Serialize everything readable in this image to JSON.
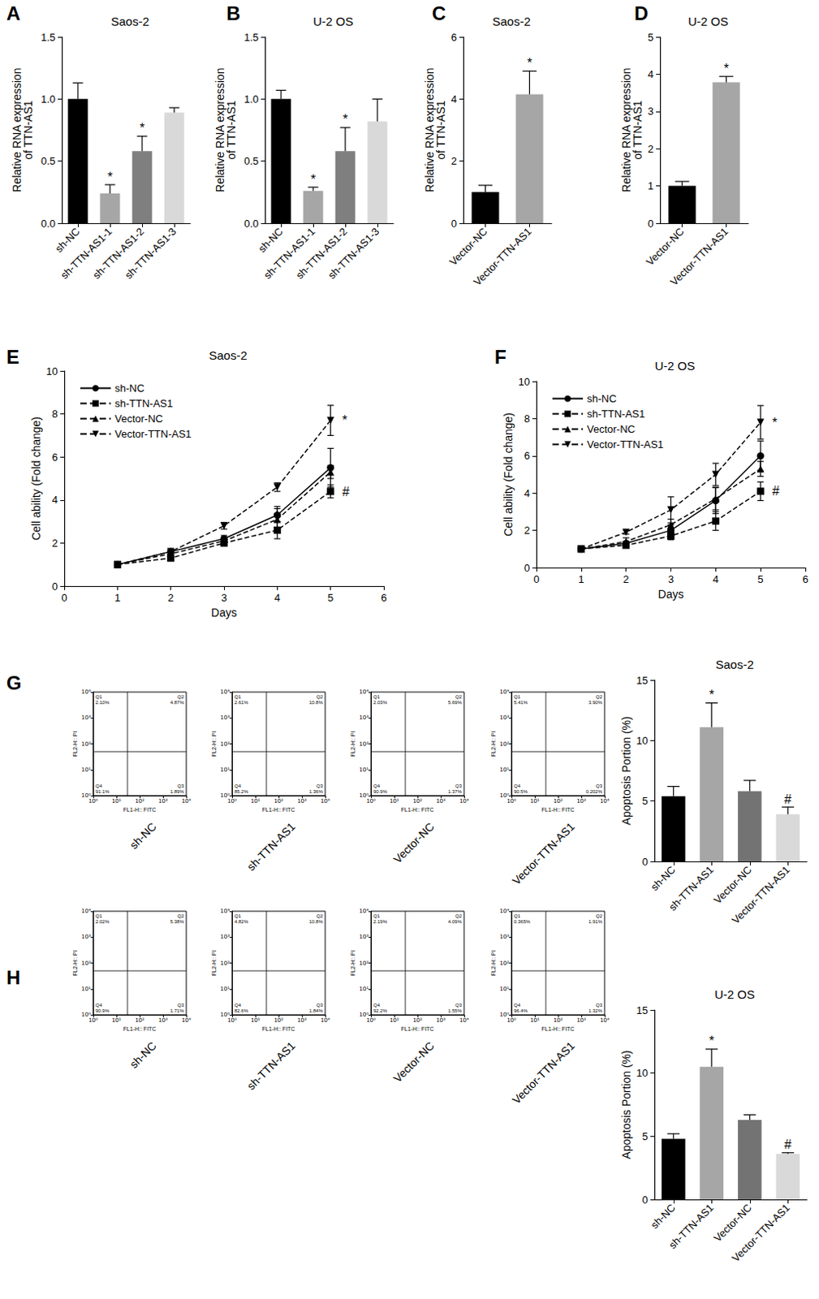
{
  "chart_data": [
    {
      "panel": "A",
      "type": "bar",
      "title": "Saos-2",
      "ylabel": "Relative RNA expression\nof TTN-AS1",
      "categories": [
        "sh-NC",
        "sh-TTN-AS1-1",
        "sh-TTN-AS1-2",
        "sh-TTN-AS1-3"
      ],
      "values": [
        1.0,
        0.24,
        0.58,
        0.89
      ],
      "errors": [
        0.13,
        0.07,
        0.12,
        0.04
      ],
      "annotations": [
        null,
        "*",
        "*",
        null
      ],
      "colors": [
        "#000000",
        "#a6a6a6",
        "#7f7f7f",
        "#d9d9d9"
      ],
      "ylim": [
        0,
        1.5
      ],
      "yticks": [
        {
          "value": 0,
          "label": "0.0"
        },
        0.5,
        {
          "value": 1,
          "label": "1.0"
        },
        1.5
      ],
      "grid": false
    },
    {
      "panel": "B",
      "type": "bar",
      "title": "U-2 OS",
      "ylabel": "Relative RNA expression\nof TTN-AS1",
      "categories": [
        "sh-NC",
        "sh-TTN-AS1-1",
        "sh-TTN-AS1-2",
        "sh-TTN-AS1-3"
      ],
      "values": [
        1.0,
        0.26,
        0.58,
        0.82
      ],
      "errors": [
        0.07,
        0.03,
        0.19,
        0.18
      ],
      "annotations": [
        null,
        "*",
        "*",
        null
      ],
      "colors": [
        "#000000",
        "#a6a6a6",
        "#7f7f7f",
        "#d9d9d9"
      ],
      "ylim": [
        0,
        1.5
      ],
      "yticks": [
        {
          "value": 0,
          "label": "0.0"
        },
        0.5,
        {
          "value": 1,
          "label": "1.0"
        },
        1.5
      ],
      "grid": false
    },
    {
      "panel": "C",
      "type": "bar",
      "title": "Saos-2",
      "ylabel": "Relative RNA expression\nof TTN-AS1",
      "categories": [
        "Vector-NC",
        "Vector-TTN-AS1"
      ],
      "values": [
        1.0,
        4.15
      ],
      "errors": [
        0.22,
        0.75
      ],
      "annotations": [
        null,
        "*"
      ],
      "colors": [
        "#000000",
        "#a6a6a6"
      ],
      "ylim": [
        0,
        6
      ],
      "yticks": [
        0,
        2,
        4,
        6
      ],
      "grid": false
    },
    {
      "panel": "D",
      "type": "bar",
      "title": "U-2 OS",
      "ylabel": "Relative RNA expression\nof TTN-AS1",
      "categories": [
        "Vector-NC",
        "Vector-TTN-AS1"
      ],
      "values": [
        1.0,
        3.78
      ],
      "errors": [
        0.12,
        0.16
      ],
      "annotations": [
        null,
        "*"
      ],
      "colors": [
        "#000000",
        "#a6a6a6"
      ],
      "ylim": [
        0,
        5
      ],
      "yticks": [
        0,
        1,
        2,
        3,
        4,
        5
      ],
      "grid": false
    },
    {
      "panel": "E",
      "type": "line",
      "title": "Saos-2",
      "xlabel": "Days",
      "ylabel": "Cell ability (Fold change)",
      "x": [
        1,
        2,
        3,
        4,
        5
      ],
      "xlim": [
        0,
        6
      ],
      "xticks": [
        0,
        1,
        2,
        3,
        4,
        5,
        6
      ],
      "ylim": [
        0,
        10
      ],
      "yticks": [
        0,
        2,
        4,
        6,
        8,
        10
      ],
      "grid": false,
      "legend": "upper left",
      "series": [
        {
          "name": "sh-NC",
          "color": "#000000",
          "marker": "circle",
          "line_style": "solid",
          "values": [
            1.0,
            1.6,
            2.2,
            3.3,
            5.5
          ],
          "errors": [
            0.05,
            0.1,
            0.15,
            0.3,
            0.9
          ]
        },
        {
          "name": "sh-TTN-AS1",
          "color": "#000000",
          "marker": "square",
          "line_style": "dashed",
          "values": [
            1.0,
            1.3,
            2.0,
            2.6,
            4.4
          ],
          "errors": [
            0.05,
            0.1,
            0.15,
            0.4,
            0.3
          ],
          "annotation": "#"
        },
        {
          "name": "Vector-NC",
          "color": "#000000",
          "marker": "triangle",
          "line_style": "dashed",
          "values": [
            1.0,
            1.5,
            2.1,
            3.1,
            5.3
          ],
          "errors": [
            0.05,
            0.1,
            0.15,
            0.6,
            0.3
          ]
        },
        {
          "name": "Vector-TTN-AS1",
          "color": "#000000",
          "marker": "triangle-down",
          "line_style": "dashed",
          "values": [
            1.0,
            1.6,
            2.8,
            4.6,
            7.7
          ],
          "errors": [
            0.05,
            0.1,
            0.15,
            0.2,
            0.7
          ],
          "annotation": "*"
        }
      ]
    },
    {
      "panel": "F",
      "type": "line",
      "title": "U-2 OS",
      "xlabel": "Days",
      "ylabel": "Cell ability (Fold change)",
      "x": [
        1,
        2,
        3,
        4,
        5
      ],
      "xlim": [
        0,
        6
      ],
      "xticks": [
        0,
        1,
        2,
        3,
        4,
        5,
        6
      ],
      "ylim": [
        0,
        10
      ],
      "yticks": [
        0,
        2,
        4,
        6,
        8,
        10
      ],
      "grid": false,
      "legend": "upper left",
      "series": [
        {
          "name": "sh-NC",
          "color": "#000000",
          "marker": "circle",
          "line_style": "solid",
          "values": [
            1.0,
            1.3,
            2.0,
            3.6,
            6.0
          ],
          "errors": [
            0.05,
            0.1,
            0.3,
            0.7,
            0.8
          ]
        },
        {
          "name": "sh-TTN-AS1",
          "color": "#000000",
          "marker": "square",
          "line_style": "dashed",
          "values": [
            1.0,
            1.2,
            1.7,
            2.5,
            4.1
          ],
          "errors": [
            0.05,
            0.1,
            0.2,
            0.5,
            0.5
          ],
          "annotation": "#"
        },
        {
          "name": "Vector-NC",
          "color": "#000000",
          "marker": "triangle",
          "line_style": "dashed",
          "values": [
            1.0,
            1.4,
            2.3,
            3.7,
            5.3
          ],
          "errors": [
            0.05,
            0.2,
            0.3,
            0.6,
            0.4
          ]
        },
        {
          "name": "Vector-TTN-AS1",
          "color": "#000000",
          "marker": "triangle-down",
          "line_style": "dashed",
          "values": [
            1.0,
            1.9,
            3.1,
            5.0,
            7.8
          ],
          "errors": [
            0.05,
            0.1,
            0.7,
            0.6,
            0.9
          ],
          "annotation": "*"
        }
      ]
    },
    {
      "panel": "G",
      "type": "quadrant",
      "caption": "sh-NC",
      "xlabel": "FL1-H:: FITC",
      "ylabel": "FL2-H:: PI",
      "log": true,
      "xlim": [
        1,
        10000
      ],
      "ylim": [
        1,
        10000
      ],
      "xticks": [
        {
          "value": 1,
          "label": "10⁰"
        },
        {
          "value": 10,
          "label": "10¹"
        },
        {
          "value": 100,
          "label": "10²"
        },
        {
          "value": 1000,
          "label": "10³"
        },
        {
          "value": 10000,
          "label": "10⁴"
        }
      ],
      "yticks": [
        {
          "value": 1,
          "label": "10⁰"
        },
        {
          "value": 10,
          "label": "10¹"
        },
        {
          "value": 100,
          "label": "10²"
        },
        {
          "value": 1000,
          "label": "10³"
        },
        {
          "value": 10000,
          "label": "10⁴"
        }
      ],
      "gate": {
        "x": 30,
        "y": 50
      },
      "quadrants": [
        {
          "name": "Q1",
          "label": "2.10%"
        },
        {
          "name": "Q2",
          "label": "4.87%"
        },
        {
          "name": "Q3",
          "label": "1.89%"
        },
        {
          "name": "Q4",
          "label": "91.1%"
        }
      ]
    },
    {
      "type": "quadrant",
      "caption": "sh-TTN-AS1",
      "xlabel": "FL1-H:: FITC",
      "ylabel": "FL2-H:: PI",
      "log": true,
      "xlim": [
        1,
        10000
      ],
      "ylim": [
        1,
        10000
      ],
      "xticks": [
        {
          "value": 1,
          "label": "10⁰"
        },
        {
          "value": 10,
          "label": "10¹"
        },
        {
          "value": 100,
          "label": "10²"
        },
        {
          "value": 1000,
          "label": "10³"
        },
        {
          "value": 10000,
          "label": "10⁴"
        }
      ],
      "yticks": [
        {
          "value": 1,
          "label": "10⁰"
        },
        {
          "value": 10,
          "label": "10¹"
        },
        {
          "value": 100,
          "label": "10²"
        },
        {
          "value": 1000,
          "label": "10³"
        },
        {
          "value": 10000,
          "label": "10⁴"
        }
      ],
      "gate": {
        "x": 30,
        "y": 50
      },
      "quadrants": [
        {
          "name": "Q1",
          "label": "2.61%"
        },
        {
          "name": "Q2",
          "label": "10.8%"
        },
        {
          "name": "Q3",
          "label": "1.36%"
        },
        {
          "name": "Q4",
          "label": "85.2%"
        }
      ]
    },
    {
      "type": "quadrant",
      "caption": "Vector-NC",
      "xlabel": "FL1-H:: FITC",
      "ylabel": "FL2-H:: PI",
      "log": true,
      "xlim": [
        1,
        10000
      ],
      "ylim": [
        1,
        10000
      ],
      "xticks": [
        {
          "value": 1,
          "label": "10⁰"
        },
        {
          "value": 10,
          "label": "10¹"
        },
        {
          "value": 100,
          "label": "10²"
        },
        {
          "value": 1000,
          "label": "10³"
        },
        {
          "value": 10000,
          "label": "10⁴"
        }
      ],
      "yticks": [
        {
          "value": 1,
          "label": "10⁰"
        },
        {
          "value": 10,
          "label": "10¹"
        },
        {
          "value": 100,
          "label": "10²"
        },
        {
          "value": 1000,
          "label": "10³"
        },
        {
          "value": 10000,
          "label": "10⁴"
        }
      ],
      "gate": {
        "x": 30,
        "y": 50
      },
      "quadrants": [
        {
          "name": "Q1",
          "label": "2.03%"
        },
        {
          "name": "Q2",
          "label": "5.69%"
        },
        {
          "name": "Q3",
          "label": "1.37%"
        },
        {
          "name": "Q4",
          "label": "90.9%"
        }
      ]
    },
    {
      "type": "quadrant",
      "caption": "Vector-TTN-AS1",
      "xlabel": "FL1-H:: FITC",
      "ylabel": "FL2-H:: PI",
      "log": true,
      "xlim": [
        1,
        10000
      ],
      "ylim": [
        1,
        10000
      ],
      "xticks": [
        {
          "value": 1,
          "label": "10⁰"
        },
        {
          "value": 10,
          "label": "10¹"
        },
        {
          "value": 100,
          "label": "10²"
        },
        {
          "value": 1000,
          "label": "10³"
        },
        {
          "value": 10000,
          "label": "10⁴"
        }
      ],
      "yticks": [
        {
          "value": 1,
          "label": "10⁰"
        },
        {
          "value": 10,
          "label": "10¹"
        },
        {
          "value": 100,
          "label": "10²"
        },
        {
          "value": 1000,
          "label": "10³"
        },
        {
          "value": 10000,
          "label": "10⁴"
        }
      ],
      "gate": {
        "x": 30,
        "y": 50
      },
      "quadrants": [
        {
          "name": "Q1",
          "label": "5.41%"
        },
        {
          "name": "Q2",
          "label": "3.90%"
        },
        {
          "name": "Q3",
          "label": "0.202%"
        },
        {
          "name": "Q4",
          "label": "90.5%"
        }
      ]
    },
    {
      "type": "bar",
      "title": "Saos-2",
      "ylabel": "Apoptosis Portion (%)",
      "categories": [
        "sh-NC",
        "sh-TTN-AS1",
        "Vector-NC",
        "Vector-TTN-AS1"
      ],
      "values": [
        5.4,
        11.1,
        5.8,
        3.9
      ],
      "errors": [
        0.8,
        2.0,
        0.9,
        0.6
      ],
      "annotations": [
        null,
        "*",
        null,
        "#"
      ],
      "colors": [
        "#000000",
        "#a6a6a6",
        "#737373",
        "#d9d9d9"
      ],
      "ylim": [
        0,
        15
      ],
      "yticks": [
        0,
        5,
        10,
        15
      ],
      "grid": false
    },
    {
      "panel": "H",
      "type": "quadrant",
      "caption": "sh-NC",
      "xlabel": "FL1-H:: FITC",
      "ylabel": "FL2-H:: PI",
      "log": true,
      "xlim": [
        1,
        10000
      ],
      "ylim": [
        1,
        10000
      ],
      "xticks": [
        {
          "value": 1,
          "label": "10⁰"
        },
        {
          "value": 10,
          "label": "10¹"
        },
        {
          "value": 100,
          "label": "10²"
        },
        {
          "value": 1000,
          "label": "10³"
        },
        {
          "value": 10000,
          "label": "10⁴"
        }
      ],
      "yticks": [
        {
          "value": 1,
          "label": "10⁰"
        },
        {
          "value": 10,
          "label": "10¹"
        },
        {
          "value": 100,
          "label": "10²"
        },
        {
          "value": 1000,
          "label": "10³"
        },
        {
          "value": 10000,
          "label": "10⁴"
        }
      ],
      "gate": {
        "x": 30,
        "y": 50
      },
      "quadrants": [
        {
          "name": "Q1",
          "label": "2.02%"
        },
        {
          "name": "Q2",
          "label": "5.38%"
        },
        {
          "name": "Q3",
          "label": "1.71%"
        },
        {
          "name": "Q4",
          "label": "90.9%"
        }
      ]
    },
    {
      "type": "quadrant",
      "caption": "sh-TTN-AS1",
      "xlabel": "FL1-H:: FITC",
      "ylabel": "FL2-H:: PI",
      "log": true,
      "xlim": [
        1,
        10000
      ],
      "ylim": [
        1,
        10000
      ],
      "xticks": [
        {
          "value": 1,
          "label": "10⁰"
        },
        {
          "value": 10,
          "label": "10¹"
        },
        {
          "value": 100,
          "label": "10²"
        },
        {
          "value": 1000,
          "label": "10³"
        },
        {
          "value": 10000,
          "label": "10⁴"
        }
      ],
      "yticks": [
        {
          "value": 1,
          "label": "10⁰"
        },
        {
          "value": 10,
          "label": "10¹"
        },
        {
          "value": 100,
          "label": "10²"
        },
        {
          "value": 1000,
          "label": "10³"
        },
        {
          "value": 10000,
          "label": "10⁴"
        }
      ],
      "gate": {
        "x": 30,
        "y": 50
      },
      "quadrants": [
        {
          "name": "Q1",
          "label": "4.82%"
        },
        {
          "name": "Q2",
          "label": "10.8%"
        },
        {
          "name": "Q3",
          "label": "1.84%"
        },
        {
          "name": "Q4",
          "label": "82.6%"
        }
      ]
    },
    {
      "type": "quadrant",
      "caption": "Vector-NC",
      "xlabel": "FL1-H:: FITC",
      "ylabel": "FL2-H:: PI",
      "log": true,
      "xlim": [
        1,
        10000
      ],
      "ylim": [
        1,
        10000
      ],
      "xticks": [
        {
          "value": 1,
          "label": "10⁰"
        },
        {
          "value": 10,
          "label": "10¹"
        },
        {
          "value": 100,
          "label": "10²"
        },
        {
          "value": 1000,
          "label": "10³"
        },
        {
          "value": 10000,
          "label": "10⁴"
        }
      ],
      "yticks": [
        {
          "value": 1,
          "label": "10⁰"
        },
        {
          "value": 10,
          "label": "10¹"
        },
        {
          "value": 100,
          "label": "10²"
        },
        {
          "value": 1000,
          "label": "10³"
        },
        {
          "value": 10000,
          "label": "10⁴"
        }
      ],
      "gate": {
        "x": 30,
        "y": 50
      },
      "quadrants": [
        {
          "name": "Q1",
          "label": "2.19%"
        },
        {
          "name": "Q2",
          "label": "4.09%"
        },
        {
          "name": "Q3",
          "label": "1.55%"
        },
        {
          "name": "Q4",
          "label": "92.2%"
        }
      ]
    },
    {
      "type": "quadrant",
      "caption": "Vector-TTN-AS1",
      "xlabel": "FL1-H:: FITC",
      "ylabel": "FL2-H:: PI",
      "log": true,
      "xlim": [
        1,
        10000
      ],
      "ylim": [
        1,
        10000
      ],
      "xticks": [
        {
          "value": 1,
          "label": "10⁰"
        },
        {
          "value": 10,
          "label": "10¹"
        },
        {
          "value": 100,
          "label": "10²"
        },
        {
          "value": 1000,
          "label": "10³"
        },
        {
          "value": 10000,
          "label": "10⁴"
        }
      ],
      "yticks": [
        {
          "value": 1,
          "label": "10⁰"
        },
        {
          "value": 10,
          "label": "10¹"
        },
        {
          "value": 100,
          "label": "10²"
        },
        {
          "value": 1000,
          "label": "10³"
        },
        {
          "value": 10000,
          "label": "10⁴"
        }
      ],
      "gate": {
        "x": 30,
        "y": 50
      },
      "quadrants": [
        {
          "name": "Q1",
          "label": "0.365%"
        },
        {
          "name": "Q2",
          "label": "1.91%"
        },
        {
          "name": "Q3",
          "label": "1.32%"
        },
        {
          "name": "Q4",
          "label": "96.4%"
        }
      ]
    },
    {
      "type": "bar",
      "title": "U-2 OS",
      "ylabel": "Apoptosis Portion (%)",
      "categories": [
        "sh-NC",
        "sh-TTN-AS1",
        "Vector-NC",
        "Vector-TTN-AS1"
      ],
      "values": [
        4.8,
        10.5,
        6.3,
        3.6
      ],
      "errors": [
        0.4,
        1.4,
        0.4,
        0.1
      ],
      "annotations": [
        null,
        "*",
        null,
        "#"
      ],
      "colors": [
        "#000000",
        "#a6a6a6",
        "#737373",
        "#d9d9d9"
      ],
      "ylim": [
        0,
        15
      ],
      "yticks": [
        0,
        5,
        10,
        15
      ],
      "grid": false
    }
  ]
}
